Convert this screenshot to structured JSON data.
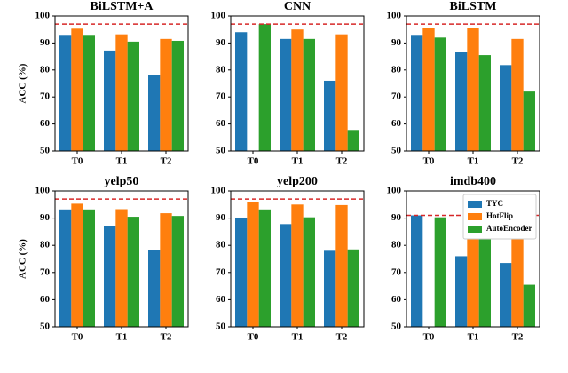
{
  "chart_data": [
    {
      "type": "bar",
      "title": "BiLSTM+A",
      "ylabel": "ACC (%)",
      "categories": [
        "T0",
        "T1",
        "T2"
      ],
      "ylim": [
        50,
        100
      ],
      "yticks": [
        50,
        60,
        70,
        80,
        90,
        100
      ],
      "reference_line": 97,
      "reference_color": "#d62728",
      "series": [
        {
          "color": "#1f77b4",
          "values": [
            93,
            87.2,
            78.2
          ]
        },
        {
          "color": "#ff7f0e",
          "values": [
            95.3,
            93.2,
            91.5
          ]
        },
        {
          "color": "#2ca02c",
          "values": [
            93,
            90.5,
            90.8
          ]
        }
      ]
    },
    {
      "type": "bar",
      "title": "CNN",
      "categories": [
        "T0",
        "T1",
        "T2"
      ],
      "ylim": [
        50,
        100
      ],
      "yticks": [
        50,
        60,
        70,
        80,
        90,
        100
      ],
      "reference_line": 97,
      "reference_color": "#d62728",
      "series": [
        {
          "color": "#1f77b4",
          "values": [
            94,
            91.5,
            76
          ]
        },
        {
          "color": "#ff7f0e",
          "values": [
            null,
            95,
            93.2
          ]
        },
        {
          "color": "#2ca02c",
          "values": [
            97,
            91.5,
            57.8
          ]
        }
      ]
    },
    {
      "type": "bar",
      "title": "BiLSTM",
      "categories": [
        "T0",
        "T1",
        "T2"
      ],
      "ylim": [
        50,
        100
      ],
      "yticks": [
        50,
        60,
        70,
        80,
        90,
        100
      ],
      "reference_line": 97,
      "reference_color": "#d62728",
      "series": [
        {
          "color": "#1f77b4",
          "values": [
            93,
            86.7,
            81.8
          ]
        },
        {
          "color": "#ff7f0e",
          "values": [
            95.5,
            95.5,
            91.5
          ]
        },
        {
          "color": "#2ca02c",
          "values": [
            92,
            85.5,
            72
          ]
        }
      ]
    },
    {
      "type": "bar",
      "title": "yelp50",
      "ylabel": "ACC (%)",
      "categories": [
        "T0",
        "T1",
        "T2"
      ],
      "ylim": [
        50,
        100
      ],
      "yticks": [
        50,
        60,
        70,
        80,
        90,
        100
      ],
      "reference_line": 97,
      "reference_color": "#d62728",
      "series": [
        {
          "color": "#1f77b4",
          "values": [
            93.2,
            87,
            78.2
          ]
        },
        {
          "color": "#ff7f0e",
          "values": [
            95.3,
            93.3,
            91.8
          ]
        },
        {
          "color": "#2ca02c",
          "values": [
            93.2,
            90.5,
            90.8
          ]
        }
      ]
    },
    {
      "type": "bar",
      "title": "yelp200",
      "categories": [
        "T0",
        "T1",
        "T2"
      ],
      "ylim": [
        50,
        100
      ],
      "yticks": [
        50,
        60,
        70,
        80,
        90,
        100
      ],
      "reference_line": 97,
      "reference_color": "#d62728",
      "series": [
        {
          "color": "#1f77b4",
          "values": [
            90.2,
            87.8,
            78
          ]
        },
        {
          "color": "#ff7f0e",
          "values": [
            95.8,
            95,
            94.8
          ]
        },
        {
          "color": "#2ca02c",
          "values": [
            93.2,
            90.3,
            78.5
          ]
        }
      ]
    },
    {
      "type": "bar",
      "title": "imdb400",
      "categories": [
        "T0",
        "T1",
        "T2"
      ],
      "ylim": [
        50,
        100
      ],
      "yticks": [
        50,
        60,
        70,
        80,
        90,
        100
      ],
      "reference_line": 91,
      "reference_color": "#d62728",
      "legend": "upper right",
      "series": [
        {
          "name": "TYC",
          "color": "#1f77b4",
          "values": [
            91,
            76,
            73.5
          ]
        },
        {
          "name": "HotFlip",
          "color": "#ff7f0e",
          "values": [
            null,
            88,
            87
          ]
        },
        {
          "name": "AutoEncoder",
          "color": "#2ca02c",
          "values": [
            90.3,
            83,
            65.5
          ]
        }
      ]
    }
  ]
}
